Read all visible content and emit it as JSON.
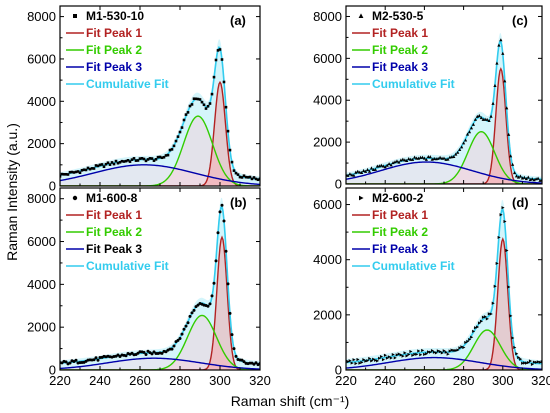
{
  "figure": {
    "xlabel": "Raman shift (cm⁻¹)",
    "ylabel": "Raman Intensity (a.u.)"
  },
  "colors": {
    "data": "#000000",
    "fit_peak_1": "#b22222",
    "fit_peak_2": "#33cc00",
    "fit_peak_3": "#0000aa",
    "cumulative_fit": "#33ccee",
    "fill_peak_1": "#ff8080",
    "fill_peak_2": "#ffc0cb",
    "fill_peak_3": "#ffd0e0",
    "fill_cumulative": "#b0ecf8"
  },
  "legend_labels": [
    "Fit Peak 1",
    "Fit Peak 2",
    "Fit Peak 3",
    "Cumulative Fit"
  ],
  "chart_data": [
    {
      "type": "line",
      "panel_label": "(a)",
      "sample": "M1-530-10",
      "marker": "square",
      "xlim": [
        220,
        320
      ],
      "ylim": [
        0,
        8500
      ],
      "x_ticks": [
        220,
        240,
        260,
        280,
        300,
        320
      ],
      "y_ticks": [
        0,
        2000,
        4000,
        6000,
        8000
      ],
      "baseline": 250,
      "peaks": [
        {
          "name": "Fit Peak 1",
          "center": 300,
          "width": 6.4,
          "height": 4900
        },
        {
          "name": "Fit Peak 2",
          "center": 289,
          "width": 17,
          "height": 3300
        },
        {
          "name": "Fit Peak 3",
          "center": 262,
          "width": 60,
          "height": 1000
        }
      ]
    },
    {
      "type": "line",
      "panel_label": "(b)",
      "sample": "M1-600-8",
      "marker": "circle",
      "xlim": [
        220,
        320
      ],
      "ylim": [
        0,
        8500
      ],
      "x_ticks": [
        220,
        240,
        260,
        280,
        300,
        320
      ],
      "y_ticks": [
        0,
        2000,
        4000,
        6000,
        8000
      ],
      "baseline": 250,
      "peaks": [
        {
          "name": "Fit Peak 1",
          "center": 301,
          "width": 6,
          "height": 6200
        },
        {
          "name": "Fit Peak 2",
          "center": 291,
          "width": 17,
          "height": 2550
        },
        {
          "name": "Fit Peak 3",
          "center": 267,
          "width": 55,
          "height": 550
        }
      ]
    },
    {
      "type": "line",
      "panel_label": "(c)",
      "sample": "M2-530-5",
      "marker": "triangle",
      "xlim": [
        220,
        320
      ],
      "ylim": [
        0,
        8500
      ],
      "x_ticks": [
        220,
        240,
        260,
        280,
        300,
        320
      ],
      "y_ticks": [
        0,
        2000,
        4000,
        6000,
        8000
      ],
      "baseline": 180,
      "peaks": [
        {
          "name": "Fit Peak 1",
          "center": 299,
          "width": 6,
          "height": 5500
        },
        {
          "name": "Fit Peak 2",
          "center": 289,
          "width": 16,
          "height": 2500
        },
        {
          "name": "Fit Peak 3",
          "center": 261,
          "width": 55,
          "height": 1050
        }
      ]
    },
    {
      "type": "line",
      "panel_label": "(d)",
      "sample": "M2-600-2",
      "marker": "triangle-right",
      "xlim": [
        220,
        320
      ],
      "ylim": [
        0,
        6600
      ],
      "x_ticks": [
        220,
        240,
        260,
        280,
        300,
        320
      ],
      "y_ticks": [
        0,
        2000,
        4000,
        6000
      ],
      "baseline": 200,
      "peaks": [
        {
          "name": "Fit Peak 1",
          "center": 300,
          "width": 6,
          "height": 4750
        },
        {
          "name": "Fit Peak 2",
          "center": 292,
          "width": 16,
          "height": 1450
        },
        {
          "name": "Fit Peak 3",
          "center": 265,
          "width": 55,
          "height": 450
        }
      ]
    }
  ]
}
